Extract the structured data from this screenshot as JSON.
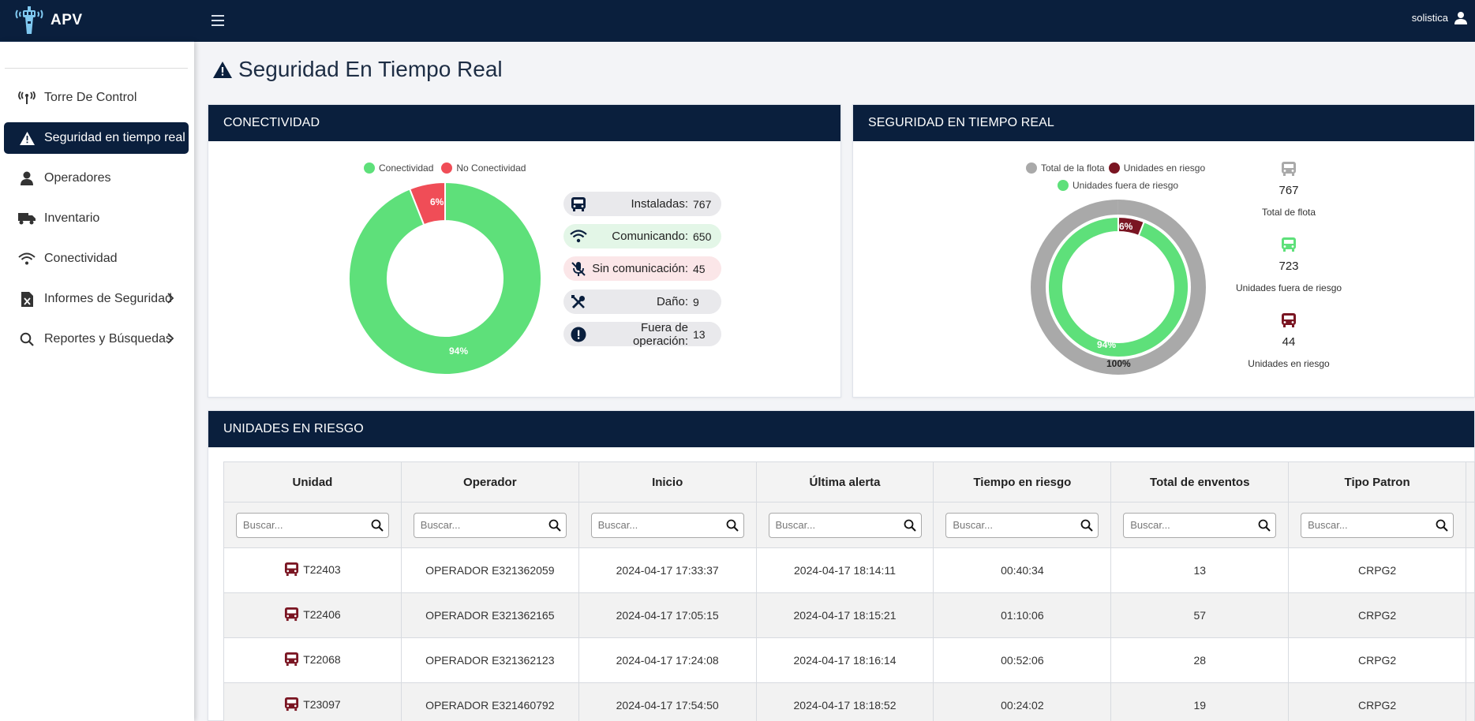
{
  "app": {
    "name": "APV"
  },
  "user": {
    "name": "solistica"
  },
  "sidebar": {
    "items": [
      {
        "label": "Torre De Control",
        "icon": "antenna-icon"
      },
      {
        "label": "Seguridad en tiempo real",
        "icon": "warning-icon",
        "active": true
      },
      {
        "label": "Operadores",
        "icon": "person-icon"
      },
      {
        "label": "Inventario",
        "icon": "truck-icon"
      },
      {
        "label": "Conectividad",
        "icon": "wifi-icon"
      },
      {
        "label": "Informes de Seguridad",
        "icon": "excel-file-icon",
        "has_children": true
      },
      {
        "label": "Reportes y Búsquedas",
        "icon": "search-icon",
        "has_children": true
      }
    ]
  },
  "page": {
    "title": "Seguridad En Tiempo Real"
  },
  "connectivity": {
    "title": "CONECTIVIDAD",
    "legend": [
      {
        "label": "Conectividad",
        "color": "#5ee07a"
      },
      {
        "label": "No Conectividad",
        "color": "#f04d57"
      }
    ],
    "donut": {
      "connected_pct": 94,
      "disconnected_pct": 6,
      "connected_label": "94%",
      "disconnected_label": "6%"
    },
    "stats": [
      {
        "label": "Instaladas:",
        "value": "767",
        "icon": "bus-icon",
        "bg": "#e9e9ec"
      },
      {
        "label": "Comunicando:",
        "value": "650",
        "icon": "wifi-icon",
        "bg": "#e3f6e7"
      },
      {
        "label": "Sin comunicación:",
        "value": "45",
        "icon": "mic-off-icon",
        "bg": "#fbe6e8"
      },
      {
        "label": "Daño:",
        "value": "9",
        "icon": "tools-icon",
        "bg": "#e9e9ec"
      },
      {
        "label": "Fuera de operación:",
        "value": "13",
        "icon": "exclamation-icon",
        "bg": "#e9e9ec"
      }
    ]
  },
  "security": {
    "title": "SEGURIDAD EN TIEMPO REAL",
    "legend": [
      {
        "label": "Total de la flota",
        "color": "#a9a9a9"
      },
      {
        "label": "Unidades en riesgo",
        "color": "#7a1522"
      },
      {
        "label": "Unidades fuera de riesgo",
        "color": "#5ee07a"
      }
    ],
    "donut": {
      "outer_pct": 100,
      "risk_pct": 6,
      "safe_pct": 94,
      "outer_label": "100%",
      "risk_label": "6%",
      "safe_label": "94%"
    },
    "stats": [
      {
        "value": "767",
        "label": "Total de flota",
        "color": "#a9a9a9"
      },
      {
        "value": "723",
        "label": "Unidades fuera de riesgo",
        "color": "#5ee07a"
      },
      {
        "value": "44",
        "label": "Unidades en riesgo",
        "color": "#7a1522"
      }
    ]
  },
  "risk_units": {
    "title": "UNIDADES EN RIESGO",
    "columns": [
      "Unidad",
      "Operador",
      "Inicio",
      "Última alerta",
      "Tiempo en riesgo",
      "Total de enventos",
      "Tipo Patron"
    ],
    "search_placeholder": "Buscar...",
    "rows": [
      [
        "T22403",
        "OPERADOR E321362059",
        "2024-04-17 17:33:37",
        "2024-04-17 18:14:11",
        "00:40:34",
        "13",
        "CRPG2"
      ],
      [
        "T22406",
        "OPERADOR E321362165",
        "2024-04-17 17:05:15",
        "2024-04-17 18:15:21",
        "01:10:06",
        "57",
        "CRPG2"
      ],
      [
        "T22068",
        "OPERADOR E321362123",
        "2024-04-17 17:24:08",
        "2024-04-17 18:16:14",
        "00:52:06",
        "28",
        "CRPG2"
      ],
      [
        "T23097",
        "OPERADOR E321460792",
        "2024-04-17 17:54:50",
        "2024-04-17 18:18:52",
        "00:24:02",
        "19",
        "CRPG2"
      ]
    ]
  },
  "colors": {
    "navy": "#0a1f3d",
    "green": "#5ee07a",
    "red": "#f04d57",
    "maroon": "#7a1522",
    "gray": "#a9a9a9"
  }
}
